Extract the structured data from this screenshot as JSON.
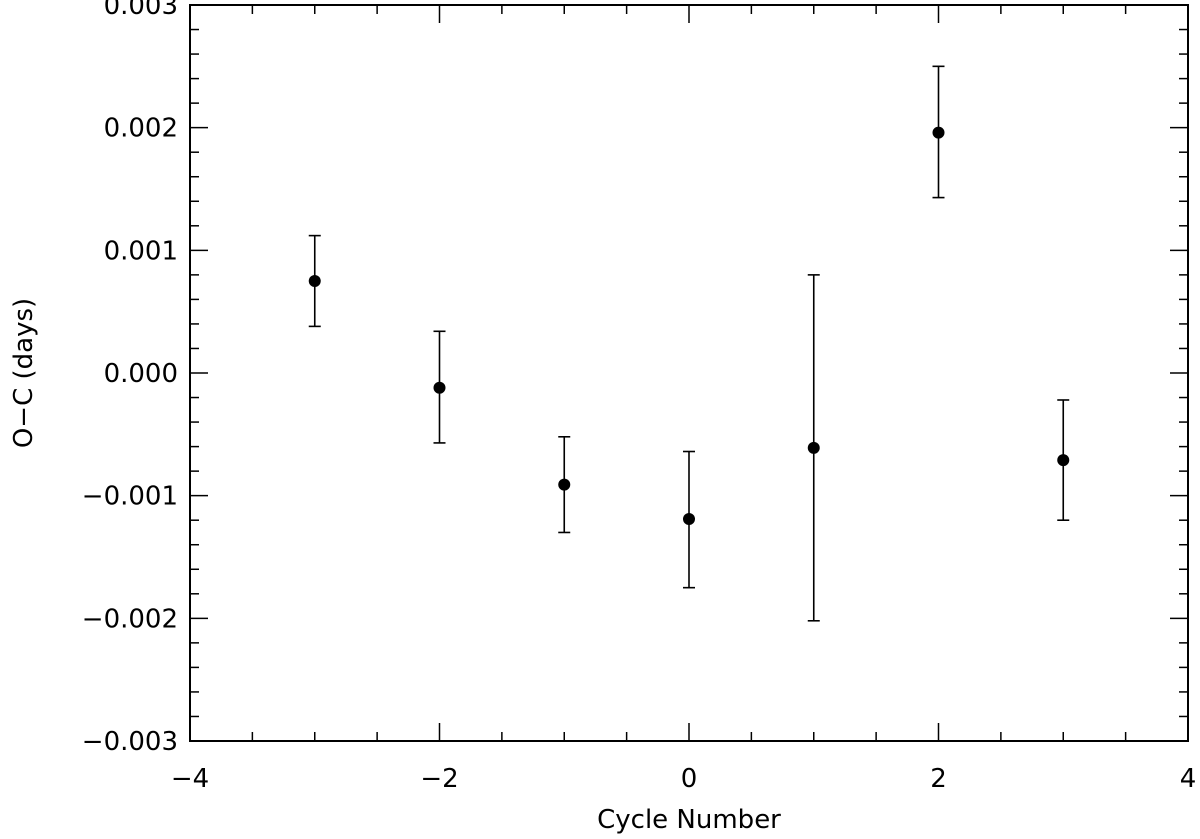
{
  "chart_data": {
    "type": "scatter",
    "title": "",
    "xlabel": "Cycle Number",
    "ylabel": "O−C (days)",
    "xlim": [
      -4,
      4
    ],
    "ylim": [
      -0.003,
      0.003
    ],
    "x_ticks": [
      -4,
      -2,
      0,
      2,
      4
    ],
    "x_tick_labels": [
      "−4",
      "−2",
      "0",
      "2",
      "4"
    ],
    "x_minor_step": 0.5,
    "y_ticks": [
      -0.003,
      -0.002,
      -0.001,
      0.0,
      0.001,
      0.002,
      0.003
    ],
    "y_tick_labels": [
      "−0.003",
      "−0.002",
      "−0.001",
      "0.000",
      "0.001",
      "0.002",
      "0.003"
    ],
    "y_minor_step": 0.0002,
    "grid": false,
    "legend": "none",
    "series": [
      {
        "points": [
          {
            "x": -3,
            "y": 0.00075,
            "y_low": 0.00038,
            "y_high": 0.00112
          },
          {
            "x": -2,
            "y": -0.00012,
            "y_low": -0.00057,
            "y_high": 0.00034
          },
          {
            "x": -1,
            "y": -0.00091,
            "y_low": -0.0013,
            "y_high": -0.00052
          },
          {
            "x": 0,
            "y": -0.00119,
            "y_low": -0.00175,
            "y_high": -0.00064
          },
          {
            "x": 1,
            "y": -0.00061,
            "y_low": -0.00202,
            "y_high": 0.0008
          },
          {
            "x": 2,
            "y": 0.00196,
            "y_low": 0.00143,
            "y_high": 0.0025
          },
          {
            "x": 3,
            "y": -0.00071,
            "y_low": -0.0012,
            "y_high": -0.00022
          }
        ]
      }
    ]
  }
}
